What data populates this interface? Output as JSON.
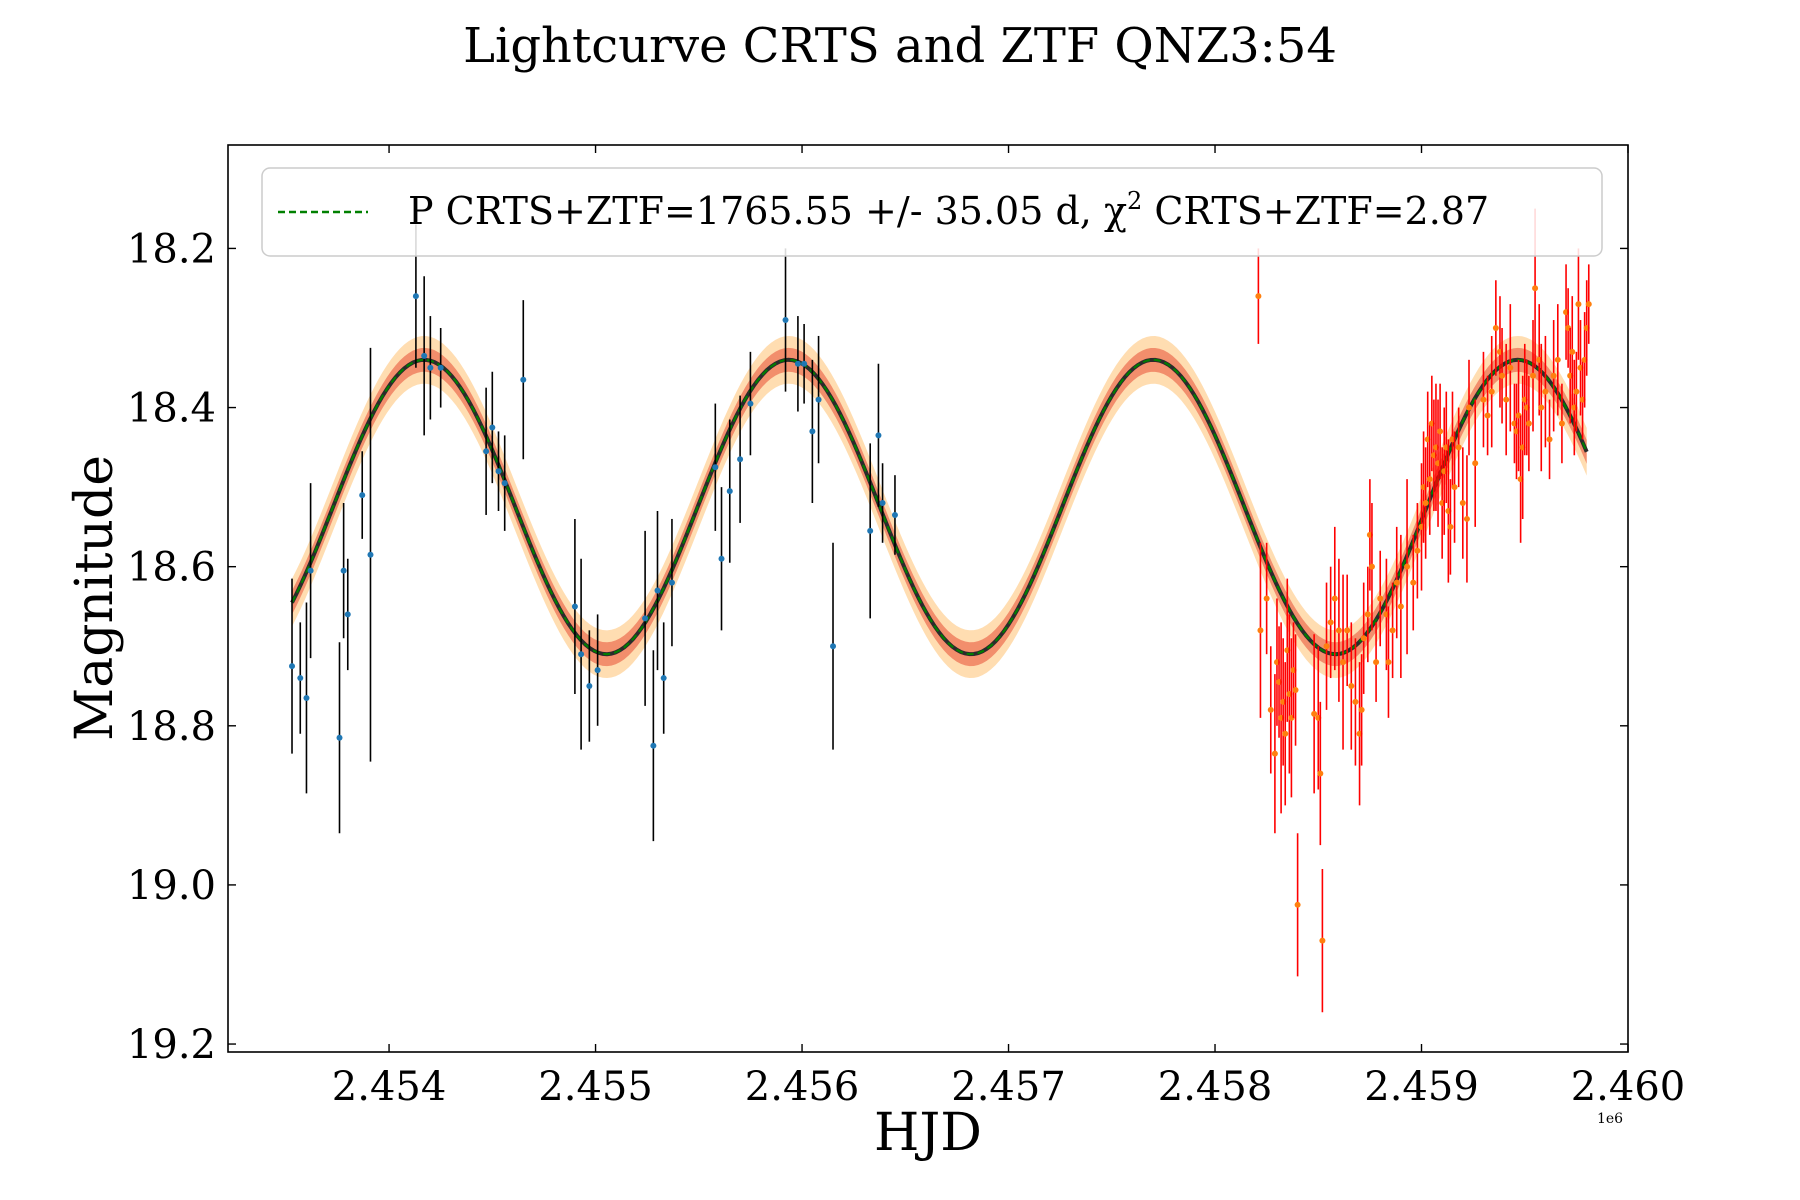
{
  "chart_data": {
    "type": "scatter",
    "title": "Lightcurve CRTS and ZTF QNZ3:54",
    "xlabel": "HJD",
    "ylabel": "Magnitude",
    "x_offset_label": "1e6",
    "xlim": [
      2453220,
      2460000
    ],
    "ylim": [
      19.21,
      18.07
    ],
    "y_inverted": true,
    "x_ticks": [
      2454000,
      2455000,
      2456000,
      2457000,
      2458000,
      2459000,
      2460000
    ],
    "x_tick_labels": [
      "2.454",
      "2.455",
      "2.456",
      "2.457",
      "2.458",
      "2.459",
      "2.460"
    ],
    "y_ticks": [
      18.2,
      18.4,
      18.6,
      18.8,
      19.0,
      19.2
    ],
    "y_tick_labels": [
      "18.2",
      "18.4",
      "18.6",
      "18.8",
      "19.0",
      "19.2"
    ],
    "legend": {
      "placement": "top",
      "label": "P CRTS+ZTF=1765.55 +/- 35.05 d, χ² CRTS+ZTF=2.87",
      "label_main": "P CRTS+ZTF=1765.55 +/- 35.05 d, χ",
      "label_sup": "2",
      "label_tail": " CRTS+ZTF=2.87"
    },
    "model": {
      "name": "P CRTS+ZTF",
      "shape": "sinusoid",
      "period": 1765.55,
      "period_err": 35.05,
      "mean": 18.525,
      "amplitude": 0.185,
      "min_mag_epoch": 2454170,
      "x_start": 2453530,
      "x_end": 2459800,
      "band_inner": 0.015,
      "band_outer": 0.03
    },
    "colors": {
      "crts_point": "#1f77b4",
      "crts_err": "#000000",
      "ztf_point": "#ff7f0e",
      "ztf_err": "#ff0000",
      "model_line": "#008000",
      "model_shadow": "#2b2b2b",
      "band_inner": "#f08060",
      "band_outer": "#ffd9a8"
    },
    "series": [
      {
        "name": "CRTS",
        "points": [
          [
            2453530,
            18.725,
            0.11
          ],
          [
            2453570,
            18.74,
            0.07
          ],
          [
            2453600,
            18.765,
            0.12
          ],
          [
            2453620,
            18.605,
            0.11
          ],
          [
            2453760,
            18.815,
            0.12
          ],
          [
            2453780,
            18.605,
            0.085
          ],
          [
            2453800,
            18.66,
            0.07
          ],
          [
            2453870,
            18.51,
            0.055
          ],
          [
            2453910,
            18.585,
            0.26
          ],
          [
            2454130,
            18.26,
            0.09
          ],
          [
            2454170,
            18.335,
            0.1
          ],
          [
            2454200,
            18.35,
            0.065
          ],
          [
            2454250,
            18.35,
            0.05
          ],
          [
            2454470,
            18.455,
            0.08
          ],
          [
            2454500,
            18.425,
            0.07
          ],
          [
            2454530,
            18.48,
            0.05
          ],
          [
            2454560,
            18.495,
            0.06
          ],
          [
            2454650,
            18.365,
            0.1
          ],
          [
            2454900,
            18.65,
            0.11
          ],
          [
            2454930,
            18.71,
            0.12
          ],
          [
            2454970,
            18.75,
            0.07
          ],
          [
            2455010,
            18.73,
            0.07
          ],
          [
            2455240,
            18.665,
            0.11
          ],
          [
            2455280,
            18.825,
            0.12
          ],
          [
            2455300,
            18.63,
            0.1
          ],
          [
            2455330,
            18.74,
            0.07
          ],
          [
            2455370,
            18.62,
            0.08
          ],
          [
            2455580,
            18.475,
            0.08
          ],
          [
            2455610,
            18.59,
            0.09
          ],
          [
            2455650,
            18.505,
            0.09
          ],
          [
            2455700,
            18.465,
            0.08
          ],
          [
            2455750,
            18.395,
            0.065
          ],
          [
            2455920,
            18.29,
            0.09
          ],
          [
            2455980,
            18.345,
            0.06
          ],
          [
            2456010,
            18.345,
            0.05
          ],
          [
            2456050,
            18.43,
            0.09
          ],
          [
            2456080,
            18.39,
            0.08
          ],
          [
            2456150,
            18.7,
            0.13
          ],
          [
            2456330,
            18.555,
            0.11
          ],
          [
            2456370,
            18.435,
            0.09
          ],
          [
            2456390,
            18.52,
            0.05
          ],
          [
            2456450,
            18.535,
            0.05
          ]
        ]
      },
      {
        "name": "ZTF",
        "points": [
          [
            2458210,
            18.26,
            0.06
          ],
          [
            2458220,
            18.68,
            0.11
          ],
          [
            2458250,
            18.64,
            0.07
          ],
          [
            2458270,
            18.78,
            0.08
          ],
          [
            2458290,
            18.835,
            0.1
          ],
          [
            2458300,
            18.72,
            0.08
          ],
          [
            2458310,
            18.745,
            0.07
          ],
          [
            2458320,
            18.79,
            0.12
          ],
          [
            2458330,
            18.77,
            0.08
          ],
          [
            2458340,
            18.81,
            0.09
          ],
          [
            2458350,
            18.705,
            0.09
          ],
          [
            2458360,
            18.76,
            0.1
          ],
          [
            2458370,
            18.79,
            0.1
          ],
          [
            2458380,
            18.73,
            0.06
          ],
          [
            2458390,
            18.755,
            0.07
          ],
          [
            2458400,
            19.025,
            0.09
          ],
          [
            2458480,
            18.785,
            0.1
          ],
          [
            2458500,
            18.79,
            0.09
          ],
          [
            2458510,
            18.86,
            0.09
          ],
          [
            2458520,
            19.07,
            0.09
          ],
          [
            2458540,
            18.7,
            0.08
          ],
          [
            2458560,
            18.67,
            0.07
          ],
          [
            2458580,
            18.64,
            0.09
          ],
          [
            2458600,
            18.68,
            0.09
          ],
          [
            2458620,
            18.72,
            0.11
          ],
          [
            2458640,
            18.68,
            0.07
          ],
          [
            2458660,
            18.75,
            0.08
          ],
          [
            2458680,
            18.77,
            0.08
          ],
          [
            2458700,
            18.81,
            0.09
          ],
          [
            2458710,
            18.78,
            0.07
          ],
          [
            2458720,
            18.69,
            0.07
          ],
          [
            2458740,
            18.66,
            0.06
          ],
          [
            2458750,
            18.56,
            0.07
          ],
          [
            2458760,
            18.6,
            0.08
          ],
          [
            2458780,
            18.72,
            0.05
          ],
          [
            2458800,
            18.64,
            0.06
          ],
          [
            2458830,
            18.66,
            0.07
          ],
          [
            2458840,
            18.72,
            0.07
          ],
          [
            2458860,
            18.68,
            0.06
          ],
          [
            2458880,
            18.62,
            0.07
          ],
          [
            2458900,
            18.65,
            0.09
          ],
          [
            2458930,
            18.6,
            0.11
          ],
          [
            2458960,
            18.62,
            0.06
          ],
          [
            2458980,
            18.58,
            0.06
          ],
          [
            2459000,
            18.55,
            0.08
          ],
          [
            2459010,
            18.5,
            0.07
          ],
          [
            2459020,
            18.52,
            0.07
          ],
          [
            2459030,
            18.44,
            0.06
          ],
          [
            2459040,
            18.49,
            0.07
          ],
          [
            2459050,
            18.42,
            0.06
          ],
          [
            2459060,
            18.46,
            0.07
          ],
          [
            2459070,
            18.45,
            0.08
          ],
          [
            2459080,
            18.47,
            0.08
          ],
          [
            2459090,
            18.43,
            0.06
          ],
          [
            2459100,
            18.52,
            0.07
          ],
          [
            2459110,
            18.48,
            0.08
          ],
          [
            2459120,
            18.45,
            0.07
          ],
          [
            2459130,
            18.53,
            0.09
          ],
          [
            2459140,
            18.55,
            0.06
          ],
          [
            2459150,
            18.44,
            0.06
          ],
          [
            2459160,
            18.5,
            0.07
          ],
          [
            2459180,
            18.45,
            0.05
          ],
          [
            2459200,
            18.52,
            0.07
          ],
          [
            2459220,
            18.54,
            0.08
          ],
          [
            2459230,
            18.4,
            0.06
          ],
          [
            2459260,
            18.47,
            0.08
          ],
          [
            2459300,
            18.39,
            0.06
          ],
          [
            2459320,
            18.41,
            0.05
          ],
          [
            2459340,
            18.38,
            0.07
          ],
          [
            2459360,
            18.3,
            0.06
          ],
          [
            2459380,
            18.33,
            0.07
          ],
          [
            2459390,
            18.36,
            0.06
          ],
          [
            2459410,
            18.39,
            0.07
          ],
          [
            2459430,
            18.35,
            0.08
          ],
          [
            2459450,
            18.42,
            0.05
          ],
          [
            2459460,
            18.43,
            0.06
          ],
          [
            2459470,
            18.41,
            0.07
          ],
          [
            2459480,
            18.49,
            0.08
          ],
          [
            2459490,
            18.45,
            0.09
          ],
          [
            2459500,
            18.39,
            0.07
          ],
          [
            2459510,
            18.4,
            0.06
          ],
          [
            2459520,
            18.42,
            0.06
          ],
          [
            2459540,
            18.36,
            0.07
          ],
          [
            2459550,
            18.25,
            0.1
          ],
          [
            2459570,
            18.34,
            0.07
          ],
          [
            2459580,
            18.4,
            0.08
          ],
          [
            2459600,
            18.38,
            0.07
          ],
          [
            2459620,
            18.44,
            0.05
          ],
          [
            2459640,
            18.36,
            0.07
          ],
          [
            2459660,
            18.34,
            0.07
          ],
          [
            2459680,
            18.42,
            0.05
          ],
          [
            2459700,
            18.28,
            0.06
          ],
          [
            2459710,
            18.3,
            0.05
          ],
          [
            2459720,
            18.36,
            0.06
          ],
          [
            2459730,
            18.33,
            0.07
          ],
          [
            2459740,
            18.4,
            0.06
          ],
          [
            2459750,
            18.38,
            0.05
          ],
          [
            2459760,
            18.27,
            0.07
          ],
          [
            2459770,
            18.35,
            0.06
          ],
          [
            2459780,
            18.39,
            0.05
          ],
          [
            2459790,
            18.34,
            0.06
          ],
          [
            2459800,
            18.3,
            0.06
          ],
          [
            2459810,
            18.27,
            0.05
          ]
        ]
      }
    ]
  }
}
